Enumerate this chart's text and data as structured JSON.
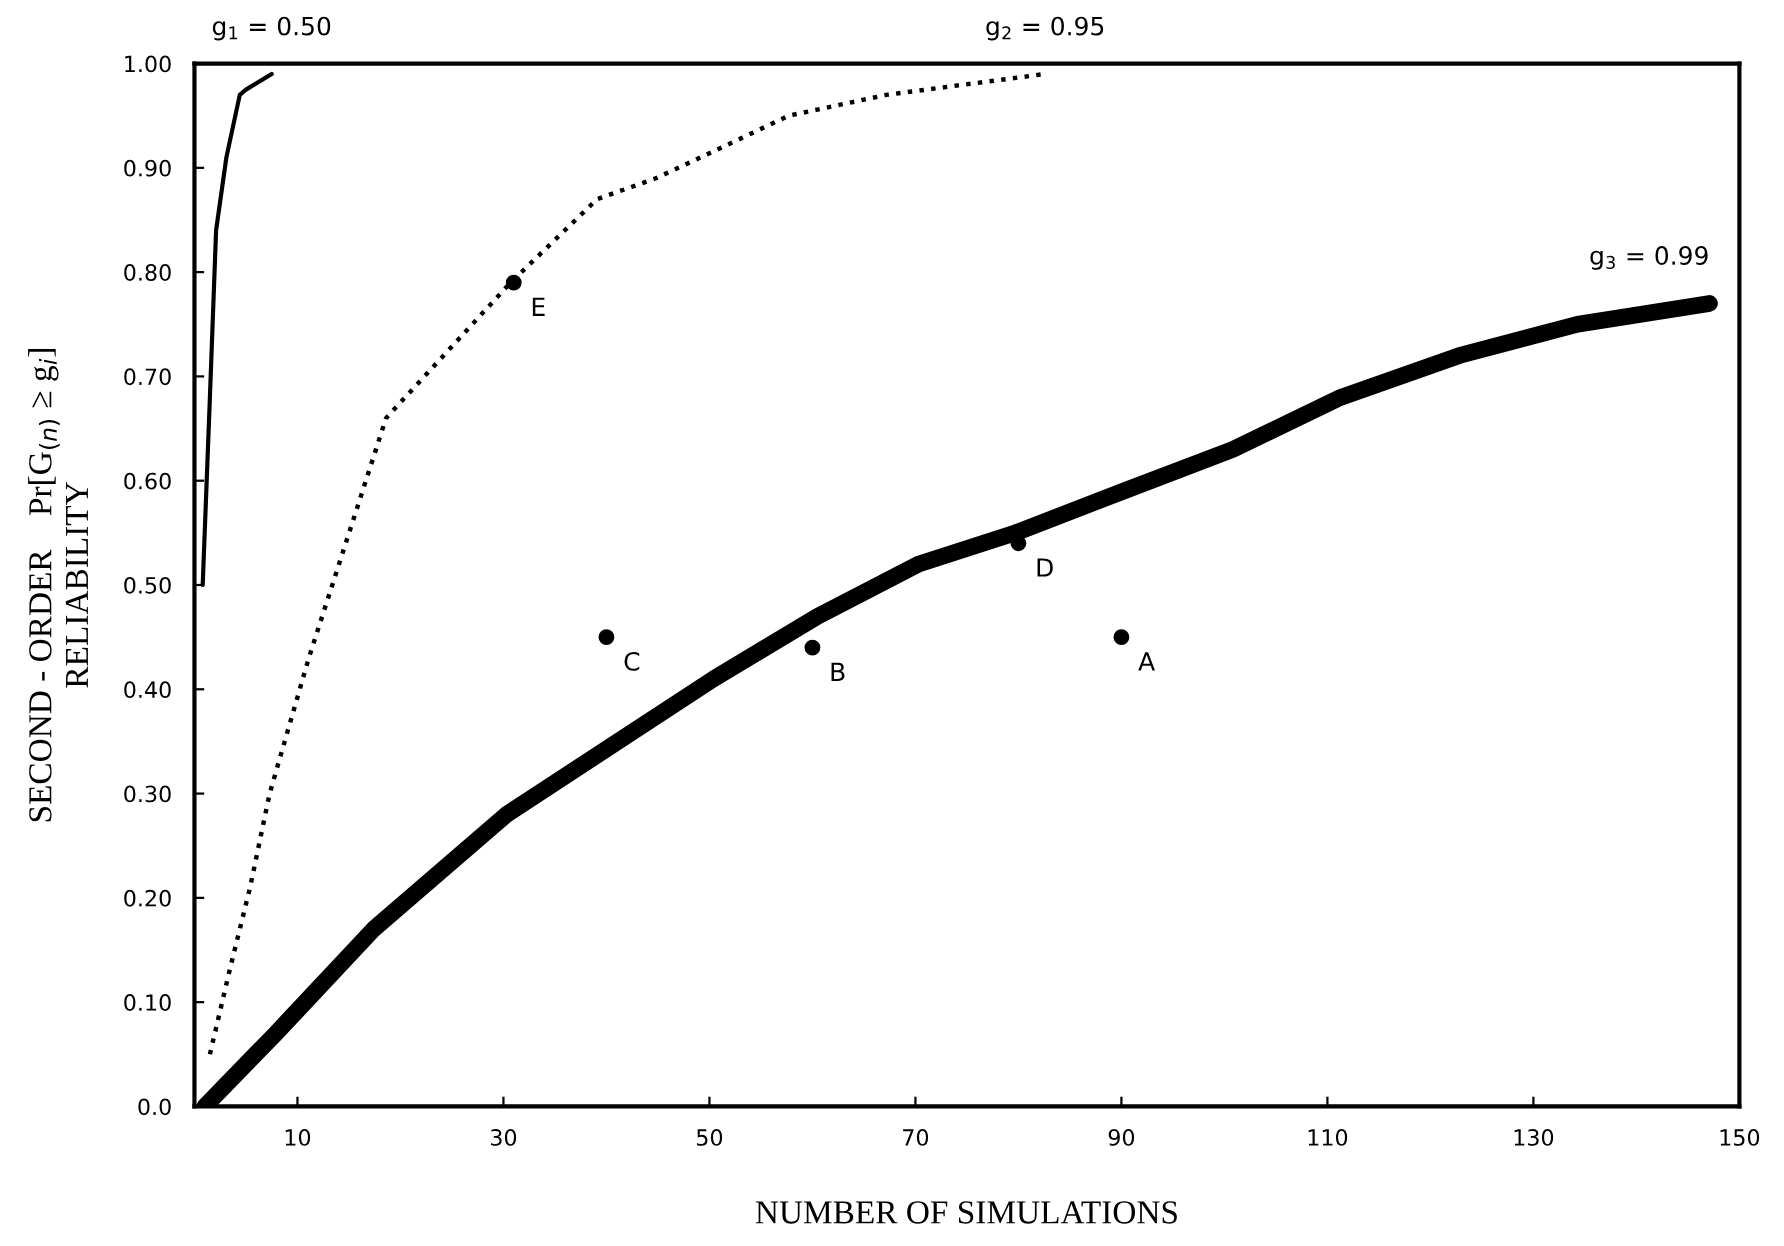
{
  "chart_data": {
    "type": "line",
    "xlabel": "NUMBER OF SIMULATIONS",
    "ylabel": "SECOND - ORDER    Pr[G$_{(n)}$ ≥ g$_{i}$]\nRELIABILITY",
    "xlim": [
      0,
      150
    ],
    "ylim": [
      0,
      1.0
    ],
    "xticks": [
      10,
      30,
      50,
      70,
      90,
      110,
      130,
      150
    ],
    "yticks": [
      {
        "value": 0,
        "label": "0.0"
      },
      {
        "value": 0.1,
        "label": "0.10"
      },
      {
        "value": 0.2,
        "label": "0.20"
      },
      {
        "value": 0.3,
        "label": "0.30"
      },
      {
        "value": 0.4,
        "label": "0.40"
      },
      {
        "value": 0.5,
        "label": "0.50"
      },
      {
        "value": 0.6,
        "label": "0.60"
      },
      {
        "value": 0.7,
        "label": "0.70"
      },
      {
        "value": 0.8,
        "label": "0.80"
      },
      {
        "value": 0.9,
        "label": "0.90"
      },
      {
        "value": 1.0,
        "label": "1.00"
      }
    ],
    "grid": false,
    "legend": false,
    "series": [
      {
        "name": "g$_{1}$ = 0.50",
        "color": "#000000",
        "line_style": "solid",
        "marker": "none",
        "x": [
          0.8,
          1.5,
          2.1,
          3.1,
          4.4,
          5.0,
          7.5
        ],
        "values": [
          0.5,
          0.68,
          0.84,
          0.91,
          0.97,
          0.975,
          0.99
        ]
      },
      {
        "name": "g$_{2}$ = 0.95",
        "color": "#000000",
        "line_style": "dotted",
        "marker": "none",
        "x": [
          1.5,
          3.4,
          5.4,
          7.3,
          11.1,
          18.6,
          30.7,
          39.1,
          44.8,
          51.3,
          57.7,
          67.2,
          82.6
        ],
        "values": [
          0.05,
          0.13,
          0.21,
          0.3,
          0.43,
          0.66,
          0.79,
          0.87,
          0.89,
          0.92,
          0.95,
          0.97,
          0.99
        ]
      },
      {
        "name": "g$_{3}$ = 0.99",
        "color": "#000000",
        "line_style": "solid",
        "marker": "none",
        "x": [
          1.0,
          7.9,
          17.4,
          30.3,
          50.4,
          60.5,
          70.3,
          79.7,
          90.2,
          100.8,
          111.3,
          122.8,
          134.3,
          147.1
        ],
        "values": [
          0.0,
          0.07,
          0.17,
          0.28,
          0.41,
          0.47,
          0.52,
          0.55,
          0.59,
          0.63,
          0.68,
          0.72,
          0.75,
          0.77
        ]
      },
      {
        "type": "scatter",
        "color": "#000000",
        "marker": "circle",
        "x": [
          90,
          60,
          40,
          80,
          31
        ],
        "values": [
          0.45,
          0.44,
          0.45,
          0.54,
          0.79
        ]
      }
    ],
    "annotations": [
      {
        "text": "A",
        "x": 90,
        "y": 0.45
      },
      {
        "text": "B",
        "x": 60,
        "y": 0.44
      },
      {
        "text": "C",
        "x": 40,
        "y": 0.45
      },
      {
        "text": "D",
        "x": 80,
        "y": 0.54
      },
      {
        "text": "E",
        "x": 31,
        "y": 0.79
      }
    ]
  }
}
